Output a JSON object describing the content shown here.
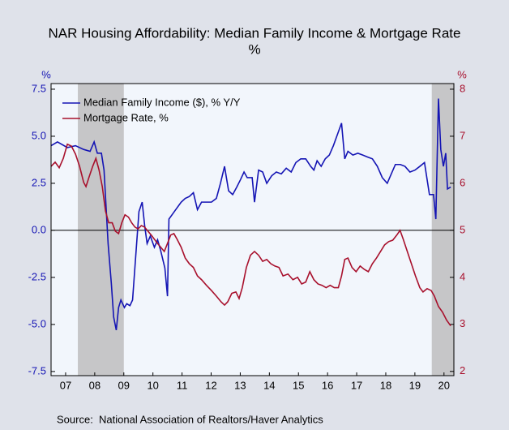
{
  "chart_data": {
    "type": "line",
    "title": "NAR Housing Affordability: Median Family Income & Mortgage Rate",
    "subtitle": "%",
    "y_label": "%",
    "y2_label": "%",
    "source": "Source:  National Association of Realtors/Haver Analytics",
    "xlim": [
      2007,
      2020.84
    ],
    "xticks": [
      {
        "value": 2007.5,
        "label": "07"
      },
      {
        "value": 2008.5,
        "label": "08"
      },
      {
        "value": 2009.5,
        "label": "09"
      },
      {
        "value": 2010.5,
        "label": "10"
      },
      {
        "value": 2011.5,
        "label": "11"
      },
      {
        "value": 2012.5,
        "label": "12"
      },
      {
        "value": 2013.5,
        "label": "13"
      },
      {
        "value": 2014.5,
        "label": "14"
      },
      {
        "value": 2015.5,
        "label": "15"
      },
      {
        "value": 2016.5,
        "label": "16"
      },
      {
        "value": 2017.5,
        "label": "17"
      },
      {
        "value": 2018.5,
        "label": "18"
      },
      {
        "value": 2019.5,
        "label": "19"
      },
      {
        "value": 2020.5,
        "label": "20"
      }
    ],
    "ylim": [
      -7.72,
      7.8
    ],
    "yticks": [
      7.5,
      {
        "value": 5,
        "label": "5.0"
      },
      2.5,
      {
        "value": 0,
        "label": "0.0"
      },
      -2.5,
      {
        "value": -5,
        "label": "-5.0"
      },
      -7.5
    ],
    "y2lim": [
      1.91,
      8.12
    ],
    "y2ticks": [
      2,
      3,
      4,
      5,
      6,
      7,
      8
    ],
    "shaded_periods": [
      [
        2007.92,
        2009.5
      ],
      [
        2020.08,
        2020.84
      ]
    ],
    "legend": "upper left",
    "series": [
      {
        "name": "Median Family Income ($), % Y/Y",
        "color": "#1414b4",
        "axis": "y",
        "x": [
          2007.0,
          2007.22,
          2007.56,
          2007.84,
          2008.12,
          2008.34,
          2008.48,
          2008.59,
          2008.73,
          2008.82,
          2008.96,
          2009.07,
          2009.15,
          2009.24,
          2009.32,
          2009.4,
          2009.52,
          2009.6,
          2009.71,
          2009.8,
          2009.94,
          2010.02,
          2010.13,
          2010.22,
          2010.3,
          2010.41,
          2010.55,
          2010.66,
          2010.77,
          2010.91,
          2011.0,
          2011.05,
          2011.19,
          2011.33,
          2011.47,
          2011.61,
          2011.75,
          2011.89,
          2012.03,
          2012.17,
          2012.31,
          2012.51,
          2012.68,
          2012.82,
          2012.96,
          2013.1,
          2013.24,
          2013.38,
          2013.51,
          2013.63,
          2013.74,
          2013.91,
          2013.99,
          2014.13,
          2014.27,
          2014.41,
          2014.58,
          2014.74,
          2014.91,
          2015.08,
          2015.25,
          2015.41,
          2015.58,
          2015.75,
          2015.92,
          2016.03,
          2016.14,
          2016.28,
          2016.42,
          2016.56,
          2016.7,
          2016.84,
          2016.98,
          2017.09,
          2017.2,
          2017.37,
          2017.54,
          2017.71,
          2017.87,
          2018.04,
          2018.21,
          2018.38,
          2018.55,
          2018.69,
          2018.83,
          2019.0,
          2019.16,
          2019.33,
          2019.5,
          2019.67,
          2019.83,
          2020.0,
          2020.14,
          2020.22,
          2020.31,
          2020.39,
          2020.48,
          2020.56,
          2020.62,
          2020.73
        ],
        "values": [
          4.5,
          4.7,
          4.4,
          4.5,
          4.3,
          4.2,
          4.7,
          4.1,
          4.1,
          3.2,
          -0.7,
          -2.8,
          -4.6,
          -5.3,
          -4.1,
          -3.7,
          -4.1,
          -3.9,
          -4.0,
          -3.7,
          -0.7,
          1.0,
          1.5,
          0.2,
          -0.7,
          -0.3,
          -0.9,
          -0.5,
          -1.1,
          -2.0,
          -3.5,
          0.6,
          0.9,
          1.2,
          1.5,
          1.7,
          1.8,
          2.0,
          1.1,
          1.5,
          1.5,
          1.5,
          1.7,
          2.5,
          3.4,
          2.1,
          1.9,
          2.3,
          2.7,
          3.1,
          2.8,
          2.8,
          1.5,
          3.2,
          3.1,
          2.5,
          2.9,
          3.1,
          3.0,
          3.3,
          3.1,
          3.6,
          3.8,
          3.8,
          3.4,
          3.2,
          3.7,
          3.4,
          3.8,
          4.0,
          4.5,
          5.1,
          5.7,
          3.8,
          4.2,
          4.0,
          4.1,
          4.0,
          3.9,
          3.8,
          3.4,
          2.8,
          2.5,
          3.0,
          3.5,
          3.5,
          3.4,
          3.1,
          3.2,
          3.4,
          3.6,
          1.9,
          1.9,
          0.6,
          7.0,
          4.3,
          3.4,
          4.1,
          2.2,
          2.3
        ]
      },
      {
        "name": "Mortgage Rate, %",
        "color": "#a8102c",
        "axis": "y2",
        "x": [
          2007.0,
          2007.14,
          2007.28,
          2007.42,
          2007.56,
          2007.7,
          2007.84,
          2007.98,
          2008.12,
          2008.2,
          2008.31,
          2008.43,
          2008.54,
          2008.65,
          2008.76,
          2008.87,
          2008.98,
          2009.1,
          2009.21,
          2009.32,
          2009.43,
          2009.54,
          2009.66,
          2009.77,
          2009.88,
          2009.99,
          2010.1,
          2010.21,
          2010.33,
          2010.44,
          2010.55,
          2010.66,
          2010.77,
          2010.89,
          2011.0,
          2011.11,
          2011.22,
          2011.33,
          2011.47,
          2011.61,
          2011.75,
          2011.89,
          2012.03,
          2012.17,
          2012.34,
          2012.51,
          2012.68,
          2012.84,
          2012.96,
          2013.07,
          2013.21,
          2013.35,
          2013.46,
          2013.57,
          2013.71,
          2013.85,
          2013.99,
          2014.13,
          2014.27,
          2014.41,
          2014.55,
          2014.69,
          2014.83,
          2014.97,
          2015.14,
          2015.31,
          2015.47,
          2015.61,
          2015.75,
          2015.89,
          2016.03,
          2016.17,
          2016.31,
          2016.45,
          2016.59,
          2016.73,
          2016.87,
          2016.98,
          2017.09,
          2017.2,
          2017.34,
          2017.48,
          2017.62,
          2017.76,
          2017.9,
          2018.04,
          2018.18,
          2018.32,
          2018.46,
          2018.6,
          2018.74,
          2018.88,
          2018.99,
          2019.1,
          2019.24,
          2019.38,
          2019.52,
          2019.67,
          2019.78,
          2019.92,
          2020.06,
          2020.17,
          2020.31,
          2020.45,
          2020.59,
          2020.73
        ],
        "values": [
          6.36,
          6.45,
          6.33,
          6.53,
          6.83,
          6.79,
          6.62,
          6.36,
          6.02,
          5.93,
          6.14,
          6.36,
          6.53,
          6.28,
          5.93,
          5.41,
          5.16,
          5.16,
          4.98,
          4.93,
          5.16,
          5.33,
          5.28,
          5.16,
          5.07,
          5.03,
          5.1,
          5.07,
          4.98,
          4.9,
          4.81,
          4.72,
          4.64,
          4.55,
          4.72,
          4.9,
          4.93,
          4.81,
          4.64,
          4.41,
          4.29,
          4.21,
          4.03,
          3.95,
          3.83,
          3.72,
          3.6,
          3.48,
          3.41,
          3.48,
          3.66,
          3.69,
          3.55,
          3.78,
          4.21,
          4.47,
          4.55,
          4.47,
          4.34,
          4.38,
          4.29,
          4.24,
          4.21,
          4.03,
          4.07,
          3.95,
          4.0,
          3.86,
          3.9,
          4.12,
          3.95,
          3.86,
          3.83,
          3.78,
          3.83,
          3.78,
          3.78,
          4.03,
          4.38,
          4.41,
          4.21,
          4.12,
          4.24,
          4.17,
          4.12,
          4.29,
          4.41,
          4.55,
          4.69,
          4.76,
          4.79,
          4.9,
          5.0,
          4.81,
          4.55,
          4.29,
          4.03,
          3.78,
          3.69,
          3.76,
          3.72,
          3.6,
          3.38,
          3.26,
          3.09,
          2.97
        ]
      }
    ]
  }
}
